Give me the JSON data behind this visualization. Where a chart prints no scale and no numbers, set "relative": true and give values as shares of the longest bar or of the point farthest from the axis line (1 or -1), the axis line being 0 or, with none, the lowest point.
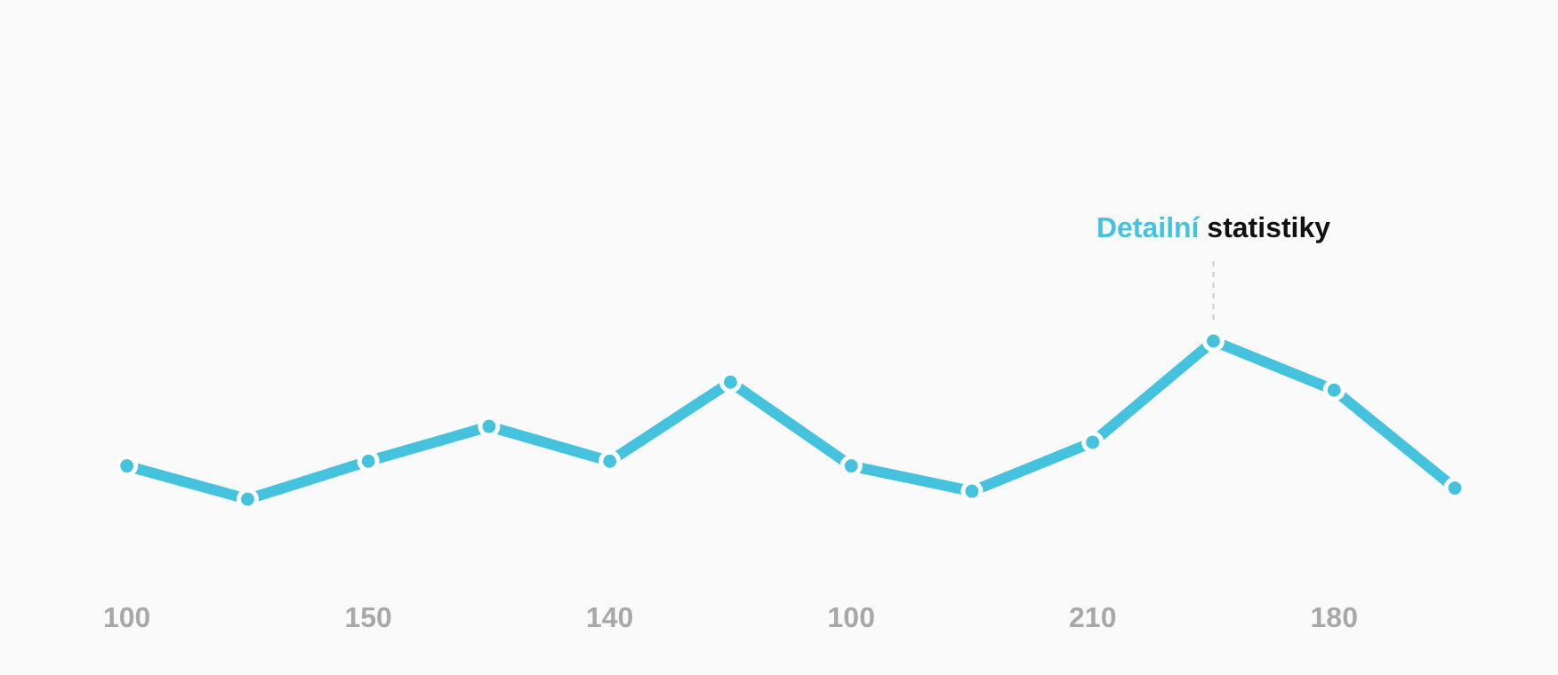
{
  "chart_data": {
    "type": "line",
    "relative": true,
    "categories": [
      "100",
      null,
      "150",
      null,
      "140",
      null,
      "100",
      null,
      "210",
      null,
      "180",
      null
    ],
    "series": [
      {
        "color": "#45c3de",
        "values": [
          0.21,
          0,
          0.24,
          0.46,
          0.24,
          0.74,
          0.21,
          0.05,
          0.36,
          1,
          0.69,
          0.07
        ]
      }
    ],
    "marker": "circle",
    "grid": false,
    "legend": false,
    "annotations": [
      "Detailní statistiky"
    ]
  }
}
